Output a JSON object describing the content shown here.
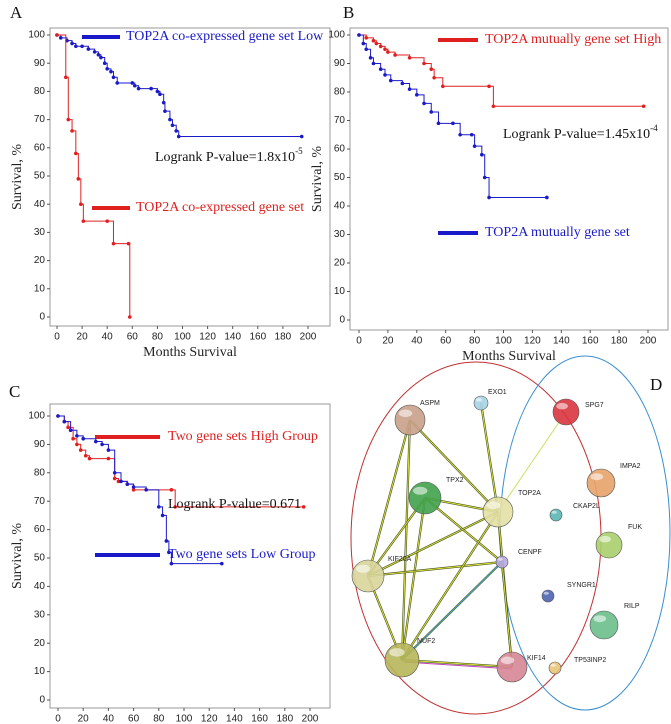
{
  "chart_data": [
    {
      "type": "line",
      "label": "A",
      "ylabel": "Survival, %",
      "xlabel": "Months Survival",
      "xlim": [
        0,
        200
      ],
      "xticks": [
        0,
        20,
        40,
        60,
        80,
        100,
        120,
        140,
        160,
        180,
        200
      ],
      "ylim": [
        0,
        100
      ],
      "yticks": [
        0,
        10,
        20,
        30,
        40,
        50,
        60,
        70,
        80,
        90,
        100
      ],
      "step": true,
      "series": [
        {
          "name": "TOP2A co-expressed gene set Low",
          "color": "#1a1ac8",
          "x": [
            0,
            3,
            8,
            12,
            15,
            20,
            25,
            30,
            33,
            35,
            38,
            40,
            43,
            45,
            48,
            60,
            62,
            65,
            75,
            80,
            82,
            85,
            86,
            90,
            92,
            95,
            97,
            195
          ],
          "values": [
            100,
            99,
            98,
            97,
            96,
            96,
            95,
            94,
            93,
            92,
            90,
            88,
            87,
            85,
            83,
            83,
            82,
            81,
            81,
            80,
            79,
            76,
            73,
            70,
            68,
            66,
            64,
            64
          ]
        },
        {
          "name": "TOP2A co-expressed gene set",
          "color": "#e02020",
          "x": [
            0,
            7,
            9,
            12,
            15,
            17,
            19,
            21,
            40,
            45,
            57,
            58
          ],
          "values": [
            100,
            85,
            70,
            66,
            58,
            49,
            40,
            34,
            34,
            26,
            26,
            0
          ]
        }
      ],
      "annotation": {
        "text": "Logrank P-value=1.8x10",
        "sup": "-5"
      }
    },
    {
      "type": "line",
      "label": "B",
      "ylabel": "Survival, %",
      "xlabel": "Months Survival",
      "xlim": [
        0,
        200
      ],
      "xticks": [
        0,
        20,
        40,
        60,
        80,
        100,
        120,
        140,
        160,
        180,
        200
      ],
      "ylim": [
        0,
        100
      ],
      "yticks": [
        0,
        10,
        20,
        30,
        40,
        50,
        60,
        70,
        80,
        90,
        100
      ],
      "step": true,
      "series": [
        {
          "name": "TOP2A mutually gene set High",
          "color": "#e02020",
          "x": [
            0,
            5,
            10,
            12,
            15,
            18,
            20,
            25,
            35,
            45,
            50,
            52,
            58,
            90,
            93,
            197
          ],
          "values": [
            100,
            99,
            98,
            97,
            96,
            95,
            94,
            93,
            92,
            90,
            88,
            85,
            82,
            82,
            75,
            75
          ]
        },
        {
          "name": "TOP2A mutually gene set",
          "color": "#1a1ac8",
          "x": [
            0,
            3,
            5,
            8,
            10,
            15,
            18,
            22,
            30,
            35,
            40,
            45,
            50,
            55,
            65,
            70,
            78,
            80,
            85,
            87,
            90,
            130
          ],
          "values": [
            100,
            97,
            95,
            92,
            90,
            88,
            86,
            84,
            83,
            81,
            79,
            76,
            73,
            69,
            69,
            65,
            65,
            61,
            58,
            50,
            43,
            43
          ]
        }
      ],
      "annotation": {
        "text": "Logrank P-value=1.45x10",
        "sup": "-4"
      }
    },
    {
      "type": "line",
      "label": "C",
      "ylabel": "Survival, %",
      "xlabel": "Months Survival",
      "xlim": [
        0,
        200
      ],
      "xticks": [
        0,
        20,
        40,
        60,
        80,
        100,
        120,
        140,
        160,
        180,
        200
      ],
      "ylim": [
        0,
        100
      ],
      "yticks": [
        0,
        10,
        20,
        30,
        40,
        50,
        60,
        70,
        80,
        90,
        100
      ],
      "step": true,
      "series": [
        {
          "name": "Two gene sets High Group",
          "color": "#e02020",
          "x": [
            0,
            5,
            8,
            12,
            15,
            18,
            22,
            25,
            40,
            45,
            48,
            55,
            60,
            90,
            93,
            195
          ],
          "values": [
            100,
            98,
            96,
            92,
            90,
            88,
            86,
            85,
            85,
            78,
            77,
            76,
            74,
            74,
            68,
            68
          ]
        },
        {
          "name": "Two gene sets Low Group",
          "color": "#1a1ac8",
          "x": [
            0,
            5,
            10,
            15,
            20,
            30,
            35,
            40,
            45,
            50,
            55,
            60,
            70,
            80,
            83,
            86,
            88,
            90,
            130
          ],
          "values": [
            100,
            98,
            95,
            93,
            92,
            91,
            90,
            88,
            80,
            77,
            76,
            75,
            74,
            68,
            65,
            56,
            52,
            48,
            48
          ]
        }
      ],
      "annotation": {
        "text": "Logrank P-value=0.671"
      }
    }
  ],
  "network": {
    "label": "D",
    "nodes": [
      {
        "label": "ASPM",
        "color": "#c9a08a"
      },
      {
        "label": "EXO1",
        "color": "#a7d3e6"
      },
      {
        "label": "SPG7",
        "color": "#d9353f"
      },
      {
        "label": "IMPA2",
        "color": "#e7a36a"
      },
      {
        "label": "TPX2",
        "color": "#41a24b"
      },
      {
        "label": "TOP2A",
        "color": "#e3e0a5"
      },
      {
        "label": "CKAP2L",
        "color": "#5bb8b2"
      },
      {
        "label": "FUK",
        "color": "#a8cf6d"
      },
      {
        "label": "KIF20A",
        "color": "#d8d59b"
      },
      {
        "label": "CENPF",
        "color": "#b6a9e3"
      },
      {
        "label": "SYNGR1",
        "color": "#4d64b2"
      },
      {
        "label": "RILP",
        "color": "#6abf8b"
      },
      {
        "label": "NUF2",
        "color": "#b7b65a"
      },
      {
        "label": "KIF14",
        "color": "#d68596"
      },
      {
        "label": "TP53INP2",
        "color": "#e8c57a"
      }
    ]
  }
}
